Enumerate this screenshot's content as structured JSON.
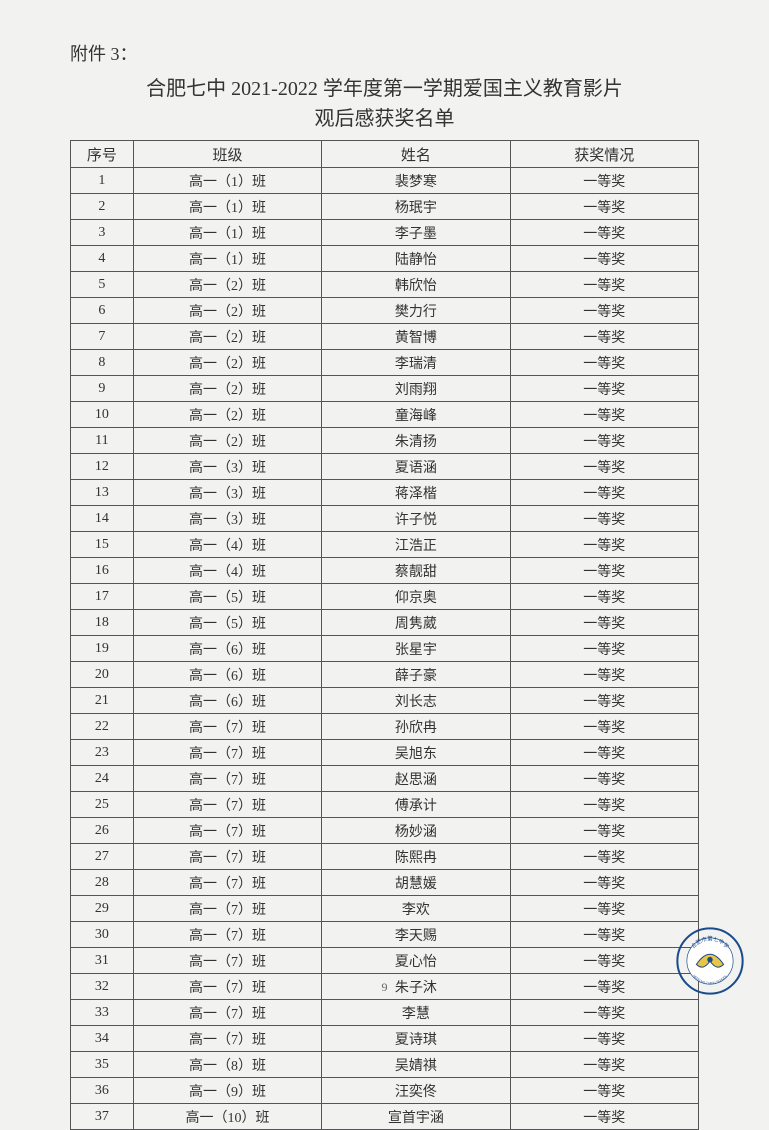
{
  "attachment_label": "附件 3：",
  "title_line1": "合肥七中 2021-2022 学年度第一学期爱国主义教育影片",
  "title_line2": "观后感获奖名单",
  "page_number": "9",
  "table": {
    "columns": [
      "序号",
      "班级",
      "姓名",
      "获奖情况"
    ],
    "column_widths": [
      "10%",
      "30%",
      "30%",
      "30%"
    ],
    "border_color": "#555555",
    "font_size": 14,
    "header_font_size": 15,
    "rows": [
      [
        "1",
        "高一（1）班",
        "裴梦寒",
        "一等奖"
      ],
      [
        "2",
        "高一（1）班",
        "杨珉宇",
        "一等奖"
      ],
      [
        "3",
        "高一（1）班",
        "李子墨",
        "一等奖"
      ],
      [
        "4",
        "高一（1）班",
        "陆静怡",
        "一等奖"
      ],
      [
        "5",
        "高一（2）班",
        "韩欣怡",
        "一等奖"
      ],
      [
        "6",
        "高一（2）班",
        "樊力行",
        "一等奖"
      ],
      [
        "7",
        "高一（2）班",
        "黄智博",
        "一等奖"
      ],
      [
        "8",
        "高一（2）班",
        "李瑞清",
        "一等奖"
      ],
      [
        "9",
        "高一（2）班",
        "刘雨翔",
        "一等奖"
      ],
      [
        "10",
        "高一（2）班",
        "童海峰",
        "一等奖"
      ],
      [
        "11",
        "高一（2）班",
        "朱清扬",
        "一等奖"
      ],
      [
        "12",
        "高一（3）班",
        "夏语涵",
        "一等奖"
      ],
      [
        "13",
        "高一（3）班",
        "蒋泽楷",
        "一等奖"
      ],
      [
        "14",
        "高一（3）班",
        "许子悦",
        "一等奖"
      ],
      [
        "15",
        "高一（4）班",
        "江浩正",
        "一等奖"
      ],
      [
        "16",
        "高一（4）班",
        "蔡靓甜",
        "一等奖"
      ],
      [
        "17",
        "高一（5）班",
        "仰京奥",
        "一等奖"
      ],
      [
        "18",
        "高一（5）班",
        "周隽葳",
        "一等奖"
      ],
      [
        "19",
        "高一（6）班",
        "张星宇",
        "一等奖"
      ],
      [
        "20",
        "高一（6）班",
        "薛子豪",
        "一等奖"
      ],
      [
        "21",
        "高一（6）班",
        "刘长志",
        "一等奖"
      ],
      [
        "22",
        "高一（7）班",
        "孙欣冉",
        "一等奖"
      ],
      [
        "23",
        "高一（7）班",
        "吴旭东",
        "一等奖"
      ],
      [
        "24",
        "高一（7）班",
        "赵思涵",
        "一等奖"
      ],
      [
        "25",
        "高一（7）班",
        "傅承计",
        "一等奖"
      ],
      [
        "26",
        "高一（7）班",
        "杨妙涵",
        "一等奖"
      ],
      [
        "27",
        "高一（7）班",
        "陈熙冉",
        "一等奖"
      ],
      [
        "28",
        "高一（7）班",
        "胡慧媛",
        "一等奖"
      ],
      [
        "29",
        "高一（7）班",
        "李欢",
        "一等奖"
      ],
      [
        "30",
        "高一（7）班",
        "李天赐",
        "一等奖"
      ],
      [
        "31",
        "高一（7）班",
        "夏心怡",
        "一等奖"
      ],
      [
        "32",
        "高一（7）班",
        "朱子沐",
        "一等奖"
      ],
      [
        "33",
        "高一（7）班",
        "李慧",
        "一等奖"
      ],
      [
        "34",
        "高一（7）班",
        "夏诗琪",
        "一等奖"
      ],
      [
        "35",
        "高一（8）班",
        "吴婧祺",
        "一等奖"
      ],
      [
        "36",
        "高一（9）班",
        "汪奕佟",
        "一等奖"
      ],
      [
        "37",
        "高一（10）班",
        "宣首宇涵",
        "一等奖"
      ]
    ]
  },
  "logo": {
    "outer_ring_color": "#1a4b8c",
    "inner_bg_color": "#ffffff",
    "accent_color": "#e8c547",
    "text_top": "合肥市第七中学",
    "text_bottom": "HEFEI NO.7 HIGH SCHOOL"
  },
  "page_bg": "#f2f2f0",
  "text_color": "#333333"
}
